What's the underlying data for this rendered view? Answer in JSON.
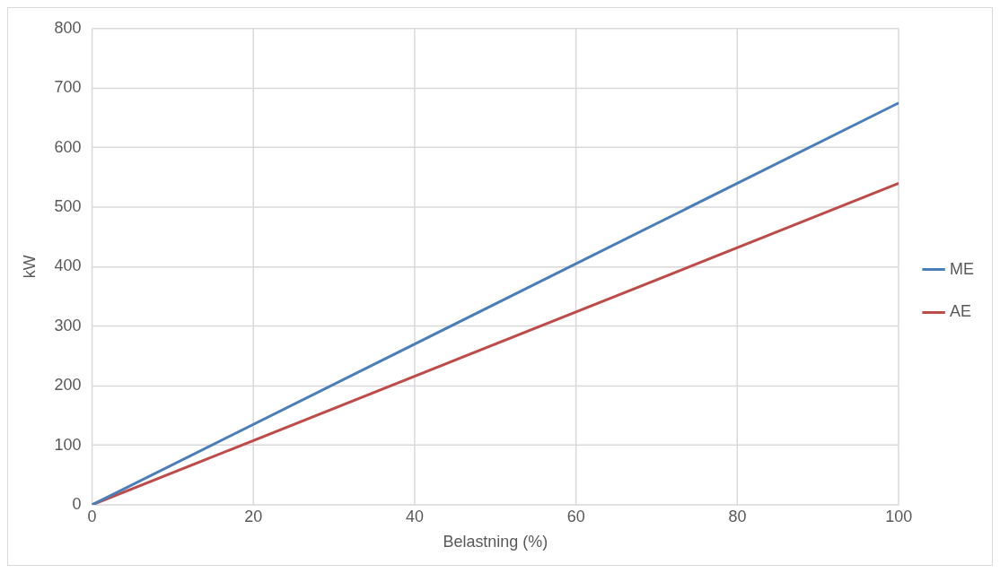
{
  "chart_data": {
    "type": "line",
    "xlabel": "Belastning (%)",
    "ylabel": "kW",
    "x": [
      0,
      100
    ],
    "series": [
      {
        "name": "ME",
        "color": "#4a7ebb",
        "values": [
          0,
          675
        ]
      },
      {
        "name": "AE",
        "color": "#be4b48",
        "values": [
          0,
          540
        ]
      }
    ],
    "xlim": [
      0,
      100
    ],
    "xticks": [
      0,
      20,
      40,
      60,
      80,
      100
    ],
    "ylim": [
      0,
      800
    ],
    "yticks": [
      0,
      100,
      200,
      300,
      400,
      500,
      600,
      700,
      800
    ],
    "grid": true,
    "legend": "right",
    "marker": "none",
    "line_style": "solid"
  }
}
